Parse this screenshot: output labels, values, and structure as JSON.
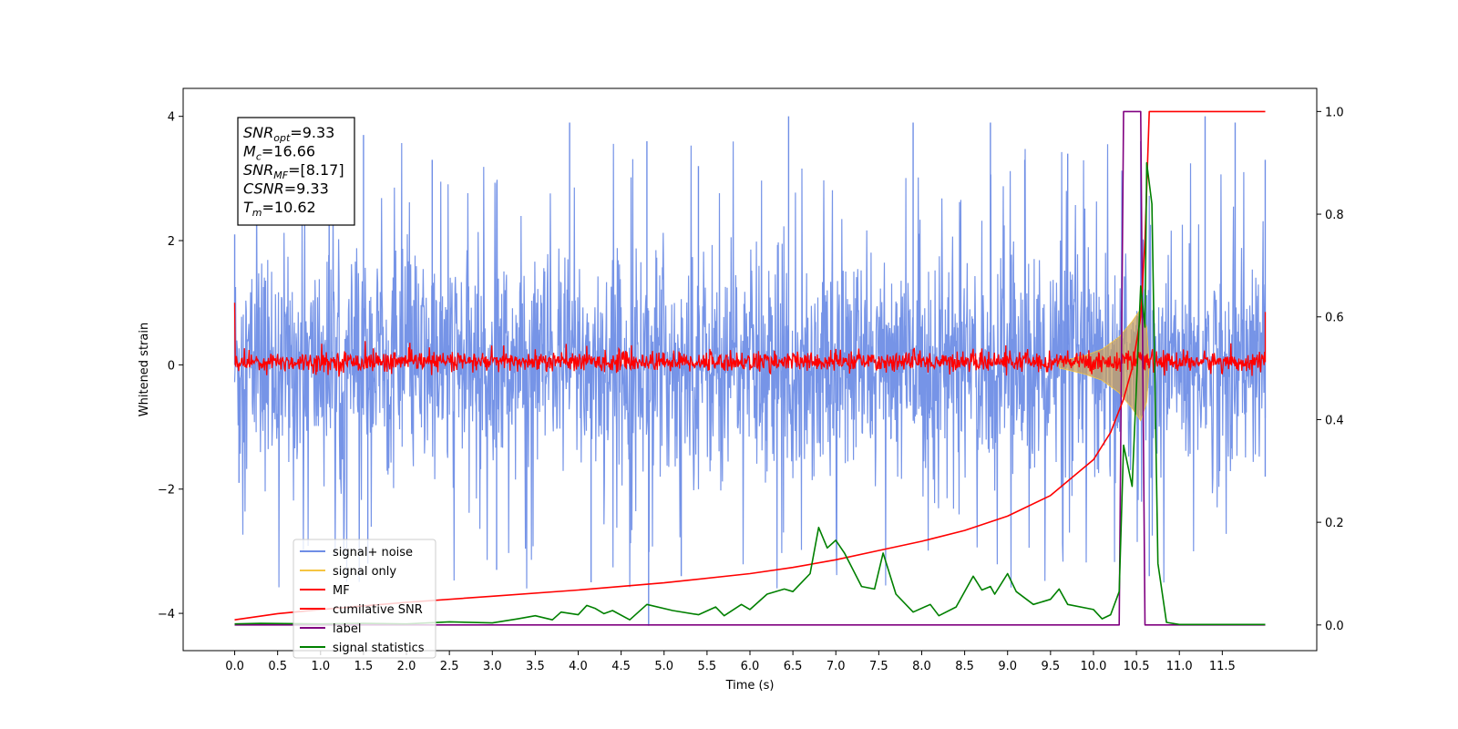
{
  "chart_data": {
    "type": "line",
    "xlabel": "Time (s)",
    "ylabel": "Whitened strain",
    "xlim": [
      -0.6,
      12.6
    ],
    "ylim_left": [
      -4.6,
      4.45
    ],
    "ylim_right": [
      -0.05,
      1.045
    ],
    "x_ticks": [
      0.0,
      0.5,
      1.0,
      1.5,
      2.0,
      2.5,
      3.0,
      3.5,
      4.0,
      4.5,
      5.0,
      5.5,
      6.0,
      6.5,
      7.0,
      7.5,
      8.0,
      8.5,
      9.0,
      9.5,
      10.0,
      10.5,
      11.0,
      11.5
    ],
    "x_tick_labels": [
      "0.0",
      "0.5",
      "1.0",
      "1.5",
      "2.0",
      "2.5",
      "3.0",
      "3.5",
      "4.0",
      "4.5",
      "5.0",
      "5.5",
      "6.0",
      "6.5",
      "7.0",
      "7.5",
      "8.0",
      "8.5",
      "9.0",
      "9.5",
      "10.0",
      "10.5",
      "11.0",
      "11.5"
    ],
    "y_left_ticks": [
      4,
      2,
      0,
      -2,
      -4
    ],
    "y_left_tick_labels": [
      "4",
      "2",
      "0",
      "−2",
      "−4"
    ],
    "y_right_ticks": [
      1.0,
      0.8,
      0.6,
      0.4,
      0.2,
      0.0
    ],
    "y_right_tick_labels": [
      "1.0",
      "0.8",
      "0.6",
      "0.4",
      "0.2",
      "0.0"
    ],
    "info_box": {
      "snr_opt": {
        "label": "SNR",
        "sub": "opt",
        "value": "=9.33"
      },
      "mc": {
        "label": "M",
        "sub": "c",
        "value": "=16.66"
      },
      "snr_mf": {
        "label": "SNR",
        "sub": "MF",
        "value": "=[8.17]"
      },
      "csnr": {
        "label": "CSNR",
        "value": "=9.33"
      },
      "tm": {
        "label": "T",
        "sub": "m",
        "value": "=10.62"
      }
    },
    "series": [
      {
        "name": "signal+ noise",
        "axis": "left",
        "color": "#6f8ee6",
        "style": "noise band, approx. range -2.3 to 2.3 with spikes to about ±4.0 over x 0.0 to 12.0",
        "points": [
          [
            0.0,
            2.1
          ],
          [
            0.05,
            -1.9
          ],
          [
            1.1,
            3.0
          ],
          [
            1.5,
            3.7
          ],
          [
            1.55,
            -3.2
          ],
          [
            2.3,
            3.3
          ],
          [
            3.05,
            -3.3
          ],
          [
            3.9,
            3.9
          ],
          [
            4.15,
            -3.5
          ],
          [
            4.8,
            3.6
          ],
          [
            4.82,
            -4.2
          ],
          [
            5.2,
            -3.4
          ],
          [
            5.4,
            3.2
          ],
          [
            6.45,
            4.0
          ],
          [
            7.9,
            3.9
          ],
          [
            8.8,
            3.9
          ],
          [
            9.2,
            3.3
          ],
          [
            9.7,
            3.4
          ],
          [
            10.55,
            3.6
          ],
          [
            10.65,
            -3.4
          ],
          [
            11.3,
            4.0
          ],
          [
            11.65,
            3.9
          ],
          [
            12.0,
            3.3
          ],
          [
            12.0,
            -1.8
          ]
        ]
      },
      {
        "name": "signal only",
        "axis": "left",
        "color": "#f5c542",
        "style": "chirp envelope",
        "points": [
          [
            9.6,
            0.05
          ],
          [
            9.9,
            0.15
          ],
          [
            10.1,
            0.25
          ],
          [
            10.3,
            0.45
          ],
          [
            10.45,
            0.7
          ],
          [
            10.55,
            0.9
          ],
          [
            10.62,
            0.6
          ],
          [
            10.65,
            0.0
          ]
        ]
      },
      {
        "name": "MF",
        "axis": "left",
        "color": "#ff0000",
        "style": "matched-filter band, approx. range -0.15 to 0.25",
        "points": [
          [
            0.0,
            1.0
          ],
          [
            0.02,
            0.3
          ],
          [
            1.0,
            0.2
          ],
          [
            3.0,
            0.25
          ],
          [
            6.0,
            0.2
          ],
          [
            9.0,
            0.22
          ],
          [
            12.0,
            0.2
          ],
          [
            12.0,
            0.85
          ]
        ]
      },
      {
        "name": "cumilative SNR",
        "axis": "right",
        "color": "#ff0000",
        "points": [
          [
            0.0,
            0.01
          ],
          [
            0.5,
            0.022
          ],
          [
            1.0,
            0.03
          ],
          [
            2.0,
            0.044
          ],
          [
            3.0,
            0.056
          ],
          [
            4.0,
            0.068
          ],
          [
            5.0,
            0.082
          ],
          [
            6.0,
            0.1
          ],
          [
            6.5,
            0.112
          ],
          [
            7.0,
            0.127
          ],
          [
            7.5,
            0.145
          ],
          [
            8.0,
            0.163
          ],
          [
            8.5,
            0.184
          ],
          [
            9.0,
            0.212
          ],
          [
            9.5,
            0.252
          ],
          [
            10.0,
            0.322
          ],
          [
            10.2,
            0.375
          ],
          [
            10.35,
            0.44
          ],
          [
            10.45,
            0.5
          ],
          [
            10.55,
            0.6
          ],
          [
            10.6,
            0.75
          ],
          [
            10.65,
            1.0
          ],
          [
            12.0,
            1.0
          ]
        ]
      },
      {
        "name": "label",
        "axis": "right",
        "color": "#800080",
        "points": [
          [
            0.0,
            0.0
          ],
          [
            10.3,
            0.0
          ],
          [
            10.35,
            1.0
          ],
          [
            10.55,
            1.0
          ],
          [
            10.6,
            0.0
          ],
          [
            12.0,
            0.0
          ]
        ]
      },
      {
        "name": "signal statistics",
        "axis": "right",
        "color": "#008000",
        "points": [
          [
            0.0,
            0.002
          ],
          [
            0.3,
            0.003
          ],
          [
            1.0,
            0.002
          ],
          [
            1.5,
            0.003
          ],
          [
            2.0,
            0.002
          ],
          [
            2.5,
            0.006
          ],
          [
            3.0,
            0.004
          ],
          [
            3.3,
            0.012
          ],
          [
            3.5,
            0.018
          ],
          [
            3.7,
            0.01
          ],
          [
            3.8,
            0.025
          ],
          [
            4.0,
            0.02
          ],
          [
            4.1,
            0.038
          ],
          [
            4.2,
            0.032
          ],
          [
            4.3,
            0.022
          ],
          [
            4.4,
            0.028
          ],
          [
            4.6,
            0.01
          ],
          [
            4.8,
            0.04
          ],
          [
            5.1,
            0.028
          ],
          [
            5.4,
            0.02
          ],
          [
            5.6,
            0.035
          ],
          [
            5.7,
            0.018
          ],
          [
            5.9,
            0.04
          ],
          [
            6.0,
            0.03
          ],
          [
            6.2,
            0.06
          ],
          [
            6.4,
            0.07
          ],
          [
            6.5,
            0.065
          ],
          [
            6.7,
            0.1
          ],
          [
            6.8,
            0.19
          ],
          [
            6.9,
            0.15
          ],
          [
            7.0,
            0.165
          ],
          [
            7.1,
            0.14
          ],
          [
            7.3,
            0.075
          ],
          [
            7.45,
            0.07
          ],
          [
            7.55,
            0.14
          ],
          [
            7.7,
            0.06
          ],
          [
            7.9,
            0.025
          ],
          [
            8.1,
            0.04
          ],
          [
            8.2,
            0.018
          ],
          [
            8.4,
            0.035
          ],
          [
            8.6,
            0.095
          ],
          [
            8.7,
            0.068
          ],
          [
            8.8,
            0.075
          ],
          [
            8.85,
            0.06
          ],
          [
            9.0,
            0.1
          ],
          [
            9.1,
            0.065
          ],
          [
            9.3,
            0.04
          ],
          [
            9.5,
            0.05
          ],
          [
            9.6,
            0.07
          ],
          [
            9.7,
            0.04
          ],
          [
            10.0,
            0.03
          ],
          [
            10.1,
            0.012
          ],
          [
            10.2,
            0.02
          ],
          [
            10.3,
            0.065
          ],
          [
            10.35,
            0.35
          ],
          [
            10.45,
            0.27
          ],
          [
            10.55,
            0.66
          ],
          [
            10.6,
            0.58
          ],
          [
            10.62,
            0.9
          ],
          [
            10.68,
            0.82
          ],
          [
            10.75,
            0.12
          ],
          [
            10.85,
            0.005
          ],
          [
            11.0,
            0.001
          ],
          [
            12.0,
            0.001
          ]
        ]
      }
    ],
    "legend": {
      "placement": "lower-left",
      "entries": [
        "signal+ noise",
        "signal only",
        "MF",
        "cumilative SNR",
        "label",
        "signal statistics"
      ]
    }
  },
  "colors": {
    "noise": "#6f8ee6",
    "signal": "#f5c542",
    "mf": "#ff0000",
    "label": "#800080",
    "statistics": "#008000"
  }
}
